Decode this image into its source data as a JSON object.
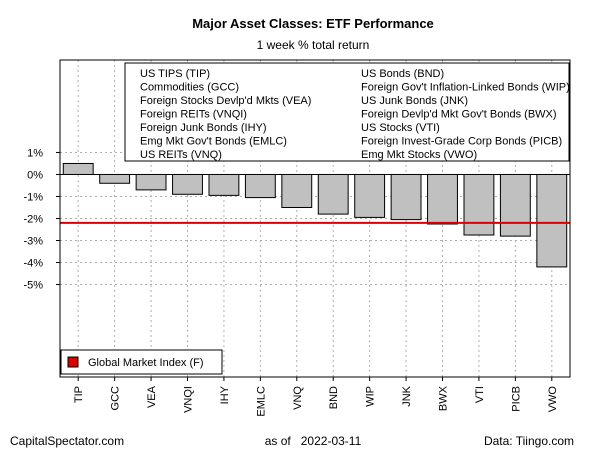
{
  "chart_data": {
    "type": "bar",
    "title": "Major Asset Classes: ETF Performance",
    "subtitle": "1 week % total return",
    "categories": [
      "TIP",
      "GCC",
      "VEA",
      "VNQI",
      "IHY",
      "EMLC",
      "VNQ",
      "BND",
      "WIP",
      "JNK",
      "BWX",
      "VTI",
      "PICB",
      "VWO"
    ],
    "values": [
      0.5,
      -0.4,
      -0.7,
      -0.9,
      -0.95,
      -1.05,
      -1.5,
      -1.8,
      -1.95,
      -2.05,
      -2.25,
      -2.75,
      -2.8,
      -4.2
    ],
    "ylim": [
      -9.2,
      5.2
    ],
    "yticks": [
      1,
      0,
      -1,
      -2,
      -3,
      -4,
      -5
    ],
    "ytick_labels": [
      "1%",
      "0%",
      "-1%",
      "-2%",
      "-3%",
      "-4%",
      "-5%"
    ],
    "grid": true,
    "bar_color": "#c0c0c0",
    "reference_line": {
      "value": -2.2,
      "color": "#dd0000"
    },
    "legend_top": {
      "col1": [
        "US TIPS (TIP)",
        "Commodities (GCC)",
        "Foreign Stocks Devlp'd Mkts (VEA)",
        "Foreign REITs (VNQI)",
        "Foreign Junk Bonds (IHY)",
        "Emg Mkt Gov't Bonds (EMLC)",
        "US REITs (VNQ)"
      ],
      "col2": [
        "US Bonds (BND)",
        "Foreign Gov't Inflation-Linked Bonds (WIP)",
        "US Junk Bonds (JNK)",
        "Foreign Devlp'd Mkt Gov't Bonds (BWX)",
        "US Stocks (VTI)",
        "Foreign Invest-Grade Corp Bonds (PICB)",
        "Emg Mkt Stocks (VWO)"
      ]
    },
    "legend_bottom": {
      "label": "Global Market Index (F)",
      "color": "#dd0000"
    }
  },
  "footer": {
    "left": "CapitalSpectator.com",
    "center": "as of   2022-03-11",
    "right": "Data: Tiingo.com"
  }
}
